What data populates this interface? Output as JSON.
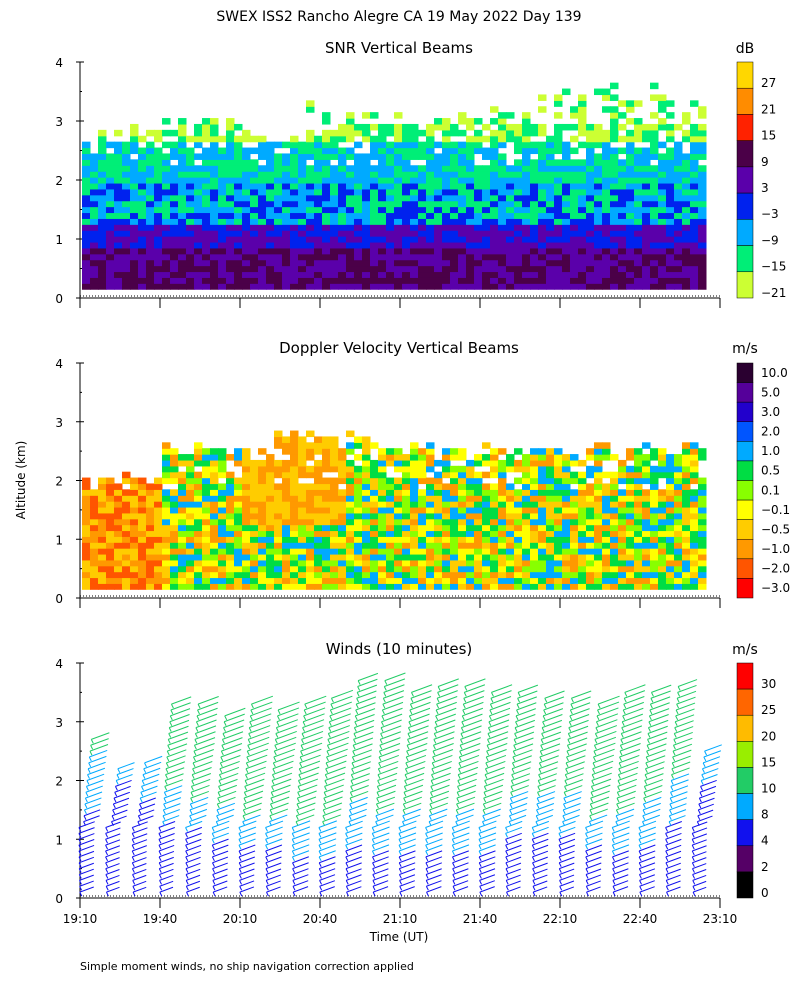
{
  "title": "SWEX ISS2 Rancho Alegre CA  19 May 2022 Day 139",
  "footnote": "Simple moment winds, no ship navigation correction applied",
  "y_axis_label": "Altitude (km)",
  "x_axis_label": "Time (UT)",
  "chart_data": [
    {
      "type": "heatmap",
      "title": "SNR Vertical Beams",
      "ylabel": "Altitude (km)",
      "ylim": [
        0,
        4
      ],
      "yticks": [
        0,
        1,
        2,
        3,
        4
      ],
      "colorbar_unit": "dB",
      "colorbar_labels": [
        "27",
        "21",
        "15",
        "9",
        "3",
        "−3",
        "−9",
        "−15",
        "−21"
      ],
      "colorbar_colors": [
        "#ffd700",
        "#ff8c00",
        "#ff2200",
        "#4b0048",
        "#5a00aa",
        "#0022ee",
        "#00aaff",
        "#00ee77",
        "#ccff33"
      ],
      "layers": [
        {
          "range_km": [
            0.15,
            0.75
          ],
          "dominant": "9 dB"
        },
        {
          "range_km": [
            0.75,
            1.2
          ],
          "dominant": "3 dB"
        },
        {
          "range_km": [
            1.2,
            1.9
          ],
          "dominant": "-9 dB"
        },
        {
          "range_km": [
            1.9,
            2.6
          ],
          "dominant": "-15 dB"
        },
        {
          "range_km": [
            2.6,
            3.3
          ],
          "dominant": "-21 dB (patchy)"
        }
      ]
    },
    {
      "type": "heatmap",
      "title": "Doppler Velocity Vertical Beams",
      "ylabel": "Altitude (km)",
      "ylim": [
        0,
        4
      ],
      "yticks": [
        0,
        1,
        2,
        3,
        4
      ],
      "colorbar_unit": "m/s",
      "colorbar_labels": [
        "10.0",
        "5.0",
        "3.0",
        "2.0",
        "1.0",
        "0.5",
        "0.1",
        "−0.1",
        "−0.5",
        "−1.0",
        "−2.0",
        "−3.0"
      ],
      "colorbar_colors": [
        "#2a0030",
        "#55009a",
        "#2200cc",
        "#0055ff",
        "#00aaff",
        "#00dd44",
        "#88ff00",
        "#ffff00",
        "#ffcc00",
        "#ff9900",
        "#ff5500",
        "#ff0000"
      ],
      "dominant_values": [
        "-1.0 to -2.0 m/s (19:10-19:40, 0-2 km)",
        "-0.5 to 0.5 m/s (elsewhere)"
      ]
    },
    {
      "type": "scatter",
      "title": "Winds (10 minutes)",
      "ylabel": "Altitude (km)",
      "ylim": [
        0,
        4
      ],
      "yticks": [
        0,
        1,
        2,
        3,
        4
      ],
      "colorbar_unit": "m/s",
      "colorbar_labels": [
        "30",
        "25",
        "20",
        "15",
        "10",
        "8",
        "4",
        "2",
        "0"
      ],
      "colorbar_colors": [
        "#ff0000",
        "#ff6600",
        "#ffbb00",
        "#99ee00",
        "#22cc66",
        "#00aaff",
        "#1111ee",
        "#550066",
        "#000000"
      ],
      "profiles": [
        {
          "time": "19:10",
          "top_km": 2.8,
          "low_speed_m_s": 5,
          "high_speed_m_s": 10
        },
        {
          "time": "19:20",
          "top_km": 2.3,
          "low_speed_m_s": 4,
          "high_speed_m_s": 9
        },
        {
          "time": "19:30",
          "top_km": 2.4,
          "low_speed_m_s": 4,
          "high_speed_m_s": 10
        },
        {
          "time": "19:40",
          "top_km": 3.4,
          "low_speed_m_s": 4,
          "high_speed_m_s": 12
        },
        {
          "time": "19:50",
          "top_km": 3.4,
          "low_speed_m_s": 4,
          "high_speed_m_s": 13
        },
        {
          "time": "20:00",
          "top_km": 3.2,
          "low_speed_m_s": 5,
          "high_speed_m_s": 13
        },
        {
          "time": "20:10",
          "top_km": 3.4,
          "low_speed_m_s": 5,
          "high_speed_m_s": 14
        },
        {
          "time": "20:20",
          "top_km": 3.3,
          "low_speed_m_s": 5,
          "high_speed_m_s": 14
        },
        {
          "time": "20:30",
          "top_km": 3.4,
          "low_speed_m_s": 6,
          "high_speed_m_s": 14
        },
        {
          "time": "20:40",
          "top_km": 3.5,
          "low_speed_m_s": 6,
          "high_speed_m_s": 14
        },
        {
          "time": "20:50",
          "top_km": 3.8,
          "low_speed_m_s": 6,
          "high_speed_m_s": 12
        },
        {
          "time": "21:00",
          "top_km": 3.8,
          "low_speed_m_s": 6,
          "high_speed_m_s": 13
        },
        {
          "time": "21:10",
          "top_km": 3.6,
          "low_speed_m_s": 6,
          "high_speed_m_s": 13
        },
        {
          "time": "21:20",
          "top_km": 3.7,
          "low_speed_m_s": 6,
          "high_speed_m_s": 13
        },
        {
          "time": "21:30",
          "top_km": 3.7,
          "low_speed_m_s": 6,
          "high_speed_m_s": 13
        },
        {
          "time": "21:40",
          "top_km": 3.6,
          "low_speed_m_s": 6,
          "high_speed_m_s": 13
        },
        {
          "time": "21:50",
          "top_km": 3.6,
          "low_speed_m_s": 5,
          "high_speed_m_s": 12
        },
        {
          "time": "22:00",
          "top_km": 3.5,
          "low_speed_m_s": 5,
          "high_speed_m_s": 12
        },
        {
          "time": "22:10",
          "top_km": 3.5,
          "low_speed_m_s": 5,
          "high_speed_m_s": 12
        },
        {
          "time": "22:20",
          "top_km": 3.4,
          "low_speed_m_s": 5,
          "high_speed_m_s": 14
        },
        {
          "time": "22:30",
          "top_km": 3.6,
          "low_speed_m_s": 6,
          "high_speed_m_s": 13
        },
        {
          "time": "22:40",
          "top_km": 3.6,
          "low_speed_m_s": 6,
          "high_speed_m_s": 12
        },
        {
          "time": "22:50",
          "top_km": 3.7,
          "low_speed_m_s": 5,
          "high_speed_m_s": 11
        },
        {
          "time": "23:00",
          "top_km": 2.6,
          "low_speed_m_s": 4,
          "high_speed_m_s": 9
        }
      ]
    }
  ],
  "x_ticks": [
    "19:10",
    "19:40",
    "20:10",
    "20:40",
    "21:10",
    "21:40",
    "22:10",
    "22:40",
    "23:10"
  ],
  "x_range": [
    "19:10",
    "23:10"
  ]
}
